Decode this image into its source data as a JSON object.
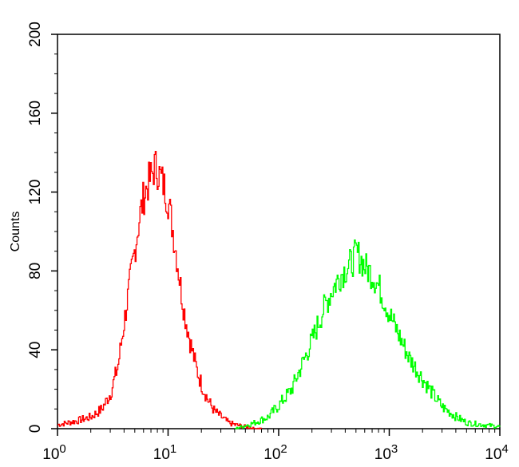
{
  "chart_data": {
    "type": "line",
    "title": "",
    "xlabel": "",
    "ylabel": "Counts",
    "xscale": "log",
    "xlim": [
      1,
      10000
    ],
    "ylim": [
      0,
      200
    ],
    "grid": false,
    "x_ticks": [
      {
        "base": "10",
        "exp": "0"
      },
      {
        "base": "10",
        "exp": "1"
      },
      {
        "base": "10",
        "exp": "2"
      },
      {
        "base": "10",
        "exp": "3"
      },
      {
        "base": "10",
        "exp": "4"
      }
    ],
    "y_ticks": [
      "0",
      "40",
      "80",
      "120",
      "160",
      "200"
    ],
    "series": [
      {
        "color": "#ff0000",
        "x": [
          1,
          1.5,
          2,
          2.5,
          3,
          3.5,
          4,
          4.5,
          5,
          5.5,
          6,
          6.5,
          7,
          7.5,
          8,
          8.5,
          9,
          10,
          11,
          12,
          13,
          14,
          16,
          18,
          20,
          23,
          26,
          30,
          35,
          40,
          50,
          60,
          70
        ],
        "y": [
          2,
          4,
          6,
          10,
          18,
          32,
          55,
          75,
          92,
          108,
          118,
          124,
          128,
          133,
          131,
          127,
          124,
          115,
          100,
          85,
          70,
          58,
          42,
          30,
          22,
          14,
          9,
          6,
          3,
          2,
          1,
          0,
          0
        ]
      },
      {
        "color": "#00ff00",
        "x": [
          40,
          60,
          80,
          100,
          130,
          160,
          200,
          250,
          300,
          350,
          400,
          450,
          500,
          550,
          600,
          700,
          800,
          1000,
          1200,
          1500,
          2000,
          2500,
          3000,
          4000,
          5000,
          7000,
          10000
        ],
        "y": [
          0,
          3,
          6,
          12,
          20,
          32,
          45,
          60,
          70,
          77,
          81,
          84,
          89,
          86,
          82,
          78,
          72,
          58,
          48,
          36,
          25,
          17,
          11,
          6,
          3,
          2,
          1
        ]
      }
    ]
  }
}
